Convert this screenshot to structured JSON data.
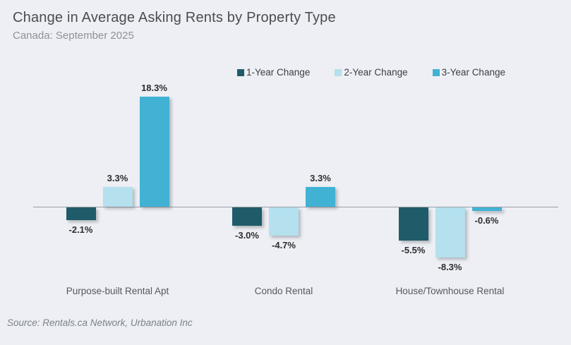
{
  "header": {
    "title": "Change in Average Asking Rents by Property Type",
    "subtitle": "Canada: September 2025"
  },
  "footer": {
    "source": "Source: Rentals.ca Network, Urbanation Inc"
  },
  "colors": {
    "background": "#edeff4",
    "axis": "#9aa0a6",
    "series_1yr": "#1f5b68",
    "series_2yr": "#b5e0ed",
    "series_3yr": "#41b2d4"
  },
  "chart_data": {
    "type": "bar",
    "categories": [
      "Purpose-built Rental Apt",
      "Condo Rental",
      "House/Townhouse Rental"
    ],
    "series": [
      {
        "name": "1-Year Change",
        "color": "#1f5b68",
        "values": [
          -2.1,
          -3.0,
          -5.5
        ],
        "labels": [
          "-2.1%",
          "-3.0%",
          "-5.5%"
        ]
      },
      {
        "name": "2-Year Change",
        "color": "#b5e0ed",
        "values": [
          3.3,
          -4.7,
          -8.3
        ],
        "labels": [
          "3.3%",
          "-4.7%",
          "-8.3%"
        ]
      },
      {
        "name": "3-Year Change",
        "color": "#41b2d4",
        "values": [
          18.3,
          3.3,
          -0.6
        ],
        "labels": [
          "18.3%",
          "3.3%",
          "-0.6%"
        ]
      }
    ],
    "title": "Change in Average Asking Rents by Property Type",
    "subtitle": "Canada: September 2025",
    "xlabel": "",
    "ylabel": "",
    "unit": "%",
    "ylim": [
      -10,
      20
    ],
    "grid": false,
    "legend_position": "top"
  }
}
